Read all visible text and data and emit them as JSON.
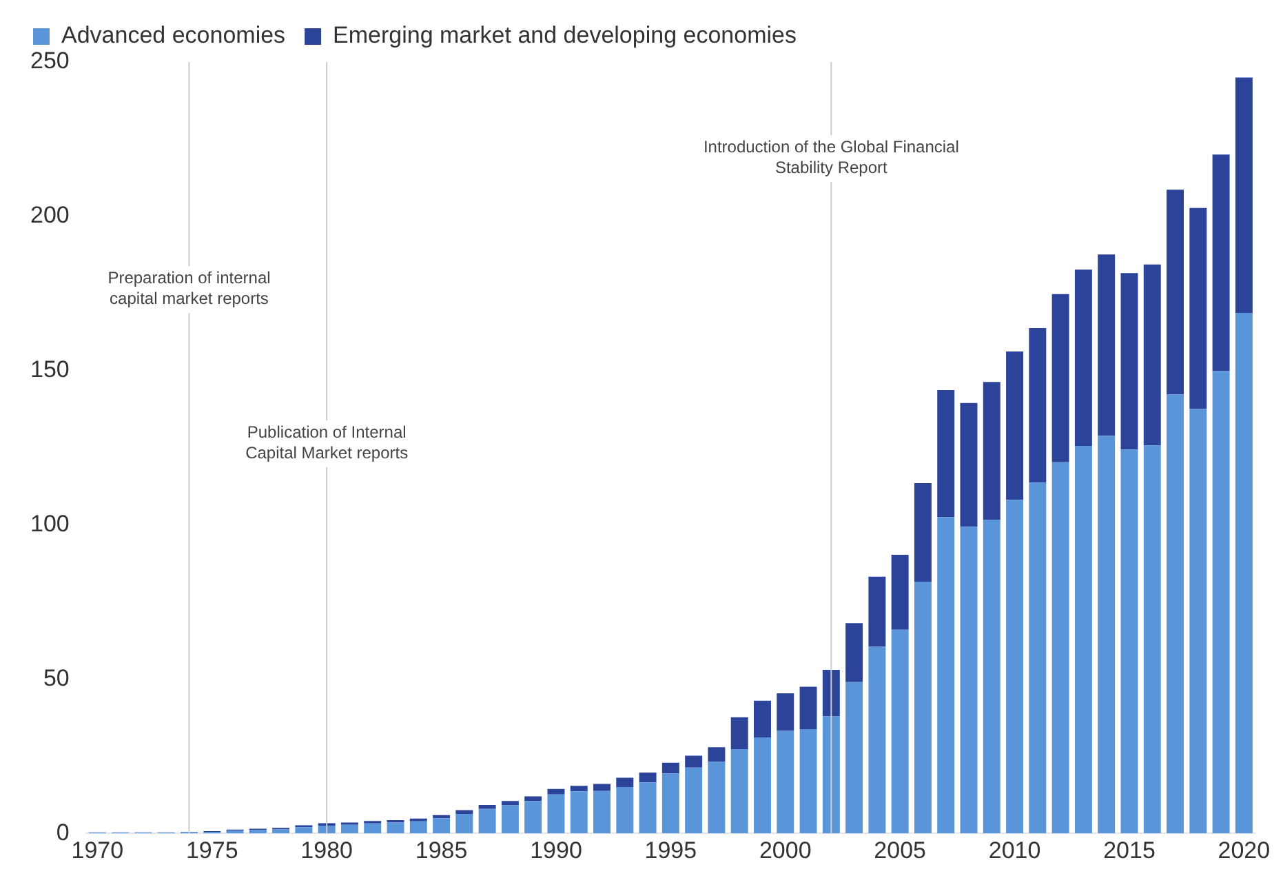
{
  "chart_data": {
    "type": "bar",
    "stacked": true,
    "x": [
      1970,
      1971,
      1972,
      1973,
      1974,
      1975,
      1976,
      1977,
      1978,
      1979,
      1980,
      1981,
      1982,
      1983,
      1984,
      1985,
      1986,
      1987,
      1988,
      1989,
      1990,
      1991,
      1992,
      1993,
      1994,
      1995,
      1996,
      1997,
      1998,
      1999,
      2000,
      2001,
      2002,
      2003,
      2004,
      2005,
      2006,
      2007,
      2008,
      2009,
      2010,
      2011,
      2012,
      2013,
      2014,
      2015,
      2016,
      2017,
      2018,
      2019,
      2020
    ],
    "xlim": [
      1969.5,
      2020.5
    ],
    "xticks": [
      1970,
      1975,
      1980,
      1985,
      1990,
      1995,
      2000,
      2005,
      2010,
      2015,
      2020
    ],
    "series": [
      {
        "name": "Advanced economies",
        "color": "#5b95d9",
        "values": [
          0.3,
          0.3,
          0.3,
          0.3,
          0.4,
          0.5,
          0.8,
          1.1,
          1.3,
          2,
          2.5,
          2.8,
          3.2,
          3.5,
          3.9,
          4.9,
          6.3,
          7.9,
          9.1,
          10.5,
          12.6,
          13.6,
          13.7,
          15,
          16.5,
          19.4,
          21.3,
          23.2,
          27.3,
          31.1,
          33.2,
          33.8,
          37.9,
          49,
          60.5,
          66,
          81.6,
          102.5,
          99.4,
          101.7,
          108.1,
          113.7,
          120.3,
          125.6,
          128.9,
          124.4,
          125.7,
          142.2,
          137.6,
          149.8,
          168.7
        ]
      },
      {
        "name": "Emerging market and developing economies",
        "color": "#2b4499",
        "values": [
          0,
          0,
          0,
          0,
          0.1,
          0.2,
          0.4,
          0.4,
          0.5,
          0.6,
          0.8,
          0.7,
          0.8,
          0.8,
          0.9,
          1,
          1.2,
          1.3,
          1.4,
          1.5,
          1.8,
          1.8,
          2.3,
          3,
          3.2,
          3.5,
          3.9,
          4.7,
          10.3,
          11.9,
          12.2,
          13.7,
          15.1,
          19.1,
          22.7,
          24.3,
          31.9,
          41.2,
          40.1,
          44.6,
          48.1,
          50.1,
          54.5,
          57.1,
          58.7,
          57.2,
          58.7,
          66.4,
          65.1,
          70.2,
          76.3
        ]
      }
    ],
    "ylim": [
      0,
      250
    ],
    "yticks": [
      0,
      50,
      100,
      150,
      200,
      250
    ],
    "ref_lines": [
      {
        "axis": "x",
        "value": 1974,
        "label": "Preparation of internal capital market reports",
        "color": "#cccccc"
      },
      {
        "axis": "x",
        "value": 1980,
        "label": "Publication of Internal Capital Market reports",
        "color": "#cccccc"
      },
      {
        "axis": "x",
        "value": 2002,
        "label": "Introduction of the Global Financial Stability Report",
        "color": "#cccccc"
      }
    ],
    "grid": false,
    "legend": "top left"
  }
}
